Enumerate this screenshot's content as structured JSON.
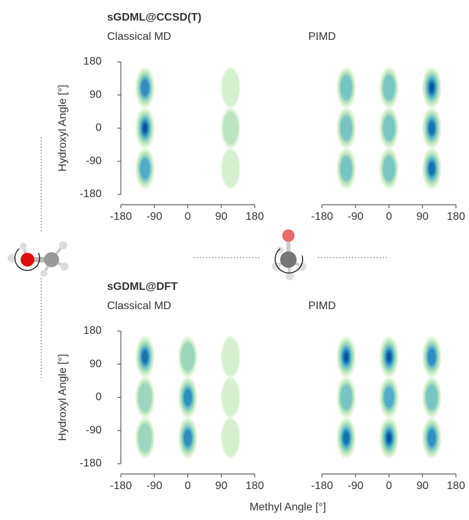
{
  "chart_data": [
    {
      "type": "density",
      "group_title": "sGDML@CCSD(T)",
      "title": "Classical MD",
      "ylabel": "Hydroxyl Angle [°]",
      "xlim": [
        -180,
        180
      ],
      "ylim": [
        -180,
        180
      ],
      "xticks": [
        -180,
        -90,
        0,
        90,
        180
      ],
      "yticks": [
        -180,
        -90,
        0,
        90,
        180
      ],
      "peaks": [
        {
          "x": -115,
          "y": 110,
          "density": 0.75
        },
        {
          "x": -115,
          "y": 0,
          "density": 0.9
        },
        {
          "x": -115,
          "y": -110,
          "density": 0.6
        },
        {
          "x": 115,
          "y": 110,
          "density": 0.15
        },
        {
          "x": 115,
          "y": 0,
          "density": 0.25
        },
        {
          "x": 115,
          "y": -110,
          "density": 0.2
        }
      ]
    },
    {
      "type": "density",
      "title": "PIMD",
      "xlim": [
        -180,
        180
      ],
      "ylim": [
        -180,
        180
      ],
      "xticks": [
        -180,
        -90,
        0,
        90,
        180
      ],
      "peaks": [
        {
          "x": -115,
          "y": 110,
          "density": 0.45
        },
        {
          "x": -115,
          "y": 0,
          "density": 0.5
        },
        {
          "x": -115,
          "y": -110,
          "density": 0.45
        },
        {
          "x": 0,
          "y": 110,
          "density": 0.5
        },
        {
          "x": 0,
          "y": 0,
          "density": 0.55
        },
        {
          "x": 0,
          "y": -110,
          "density": 0.45
        },
        {
          "x": 115,
          "y": 110,
          "density": 0.9
        },
        {
          "x": 115,
          "y": 0,
          "density": 0.85
        },
        {
          "x": 115,
          "y": -110,
          "density": 0.8
        }
      ]
    },
    {
      "type": "density",
      "group_title": "sGDML@DFT",
      "title": "Classical MD",
      "ylabel": "Hydroxyl Angle [°]",
      "xlabel": "Methyl Angle [°]",
      "xlim": [
        -180,
        180
      ],
      "ylim": [
        -180,
        180
      ],
      "xticks": [
        -180,
        -90,
        0,
        90,
        180
      ],
      "yticks": [
        -180,
        -90,
        0,
        90,
        180
      ],
      "peaks": [
        {
          "x": -115,
          "y": 110,
          "density": 0.85
        },
        {
          "x": -115,
          "y": 0,
          "density": 0.4
        },
        {
          "x": -115,
          "y": -110,
          "density": 0.4
        },
        {
          "x": 0,
          "y": 110,
          "density": 0.4
        },
        {
          "x": 0,
          "y": 0,
          "density": 0.75
        },
        {
          "x": 0,
          "y": -110,
          "density": 0.7
        },
        {
          "x": 115,
          "y": 110,
          "density": 0.15
        },
        {
          "x": 115,
          "y": 0,
          "density": 0.2
        },
        {
          "x": 115,
          "y": -110,
          "density": 0.2
        }
      ]
    },
    {
      "type": "density",
      "title": "PIMD",
      "xlim": [
        -180,
        180
      ],
      "ylim": [
        -180,
        180
      ],
      "xticks": [
        -180,
        -90,
        0,
        90,
        180
      ],
      "peaks": [
        {
          "x": -115,
          "y": 110,
          "density": 0.9
        },
        {
          "x": -115,
          "y": 0,
          "density": 0.5
        },
        {
          "x": -115,
          "y": -110,
          "density": 0.8
        },
        {
          "x": 0,
          "y": 110,
          "density": 0.9
        },
        {
          "x": 0,
          "y": 0,
          "density": 0.6
        },
        {
          "x": 0,
          "y": -110,
          "density": 0.9
        },
        {
          "x": 115,
          "y": 110,
          "density": 0.75
        },
        {
          "x": 115,
          "y": 0,
          "density": 0.55
        },
        {
          "x": 115,
          "y": -110,
          "density": 0.7
        }
      ]
    }
  ]
}
